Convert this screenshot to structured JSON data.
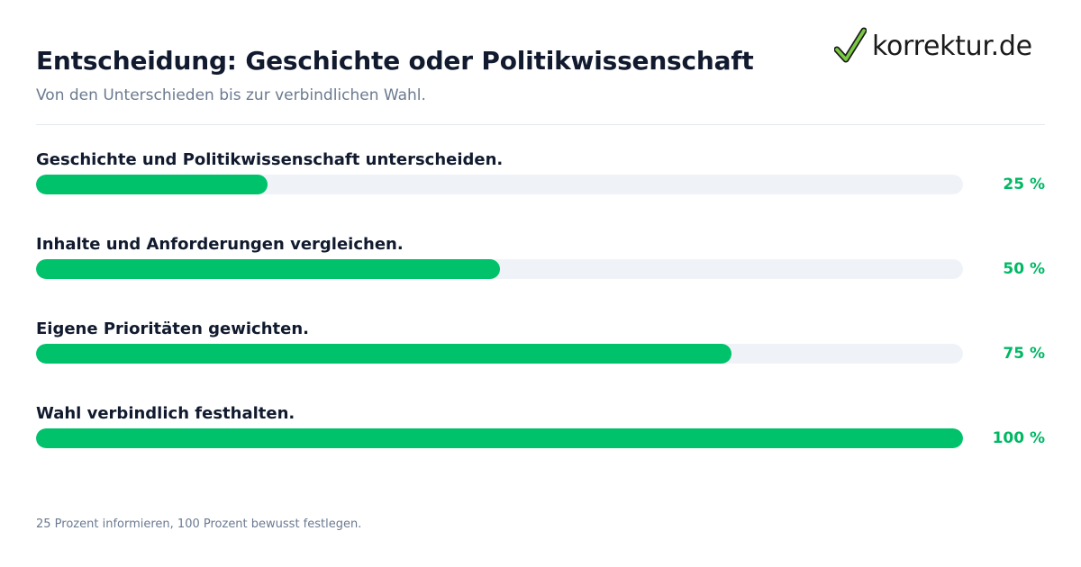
{
  "header": {
    "title": "Entscheidung: Geschichte oder Politikwissenschaft",
    "subtitle": "Von den Unterschieden bis zur verbindlichen Wahl."
  },
  "logo": {
    "text": "korrektur.de",
    "icon": "checkmark-icon",
    "check_color": "#7ac943"
  },
  "colors": {
    "accent": "#00c26b",
    "track": "#eff3f8",
    "percent_text": "#00b864"
  },
  "chart_data": {
    "type": "bar",
    "orientation": "horizontal",
    "categories": [
      "Geschichte und Politikwissenschaft unterscheiden.",
      "Inhalte und Anforderungen vergleichen.",
      "Eigene Prioritäten gewichten.",
      "Wahl verbindlich festhalten."
    ],
    "values": [
      25,
      50,
      75,
      100
    ],
    "value_labels": [
      "25 %",
      "50 %",
      "75 %",
      "100 %"
    ],
    "xlim": [
      0,
      100
    ],
    "title": "Entscheidung: Geschichte oder Politikwissenschaft",
    "subtitle": "Von den Unterschieden bis zur verbindlichen Wahl.",
    "grid": false,
    "legend": "none"
  },
  "footnote": "25 Prozent informieren, 100 Prozent bewusst festlegen."
}
